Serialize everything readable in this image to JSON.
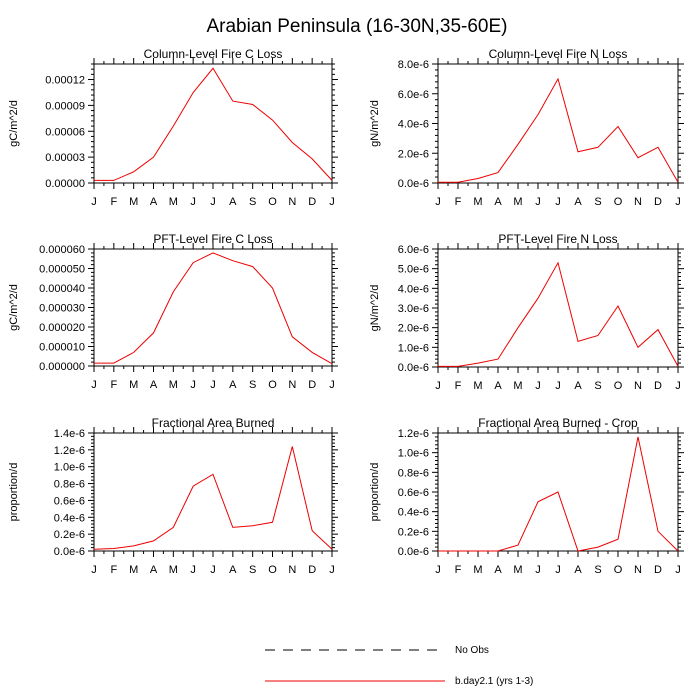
{
  "figure": {
    "title": "Arabian Peninsula (16-30N,35-60E)",
    "legend": [
      {
        "label": "No Obs",
        "style": "dashed",
        "color": "#000000"
      },
      {
        "label": "b.day2.1 (yrs 1-3)",
        "style": "solid",
        "color": "#ee0000"
      }
    ]
  },
  "chart_data": [
    {
      "type": "line",
      "title": "Column-Level Fire C Loss",
      "xlabel": "",
      "ylabel": "gC/m^2/d",
      "categories": [
        "J",
        "F",
        "M",
        "A",
        "M",
        "J",
        "J",
        "A",
        "S",
        "O",
        "N",
        "D",
        "J"
      ],
      "ylim": [
        0,
        0.000138
      ],
      "yticks": [
        0,
        3e-05,
        6e-05,
        9e-05,
        0.00012
      ],
      "ytick_labels": [
        "0.00000",
        "0.00003",
        "0.00006",
        "0.00009",
        "0.00012"
      ],
      "series": [
        {
          "name": "b.day2.1 (yrs 1-3)",
          "color": "#ee0000",
          "values": [
            3e-06,
            3e-06,
            1.3e-05,
            3e-05,
            6.6e-05,
            0.000105,
            0.000133,
            9.5e-05,
            9.1e-05,
            7.3e-05,
            4.7e-05,
            2.8e-05,
            3e-06
          ]
        }
      ]
    },
    {
      "type": "line",
      "title": "Column-Level Fire N Loss",
      "xlabel": "",
      "ylabel": "gN/m^2/d",
      "categories": [
        "J",
        "F",
        "M",
        "A",
        "M",
        "J",
        "J",
        "A",
        "S",
        "O",
        "N",
        "D",
        "J"
      ],
      "ylim": [
        0,
        8e-06
      ],
      "yticks": [
        0,
        2e-06,
        4e-06,
        6e-06,
        8e-06
      ],
      "ytick_labels": [
        "0.0e-6",
        "2.0e-6",
        "4.0e-6",
        "6.0e-6",
        "8.0e-6"
      ],
      "series": [
        {
          "name": "b.day2.1 (yrs 1-3)",
          "color": "#ee0000",
          "values": [
            5e-08,
            5e-08,
            3e-07,
            7e-07,
            2.6e-06,
            4.6e-06,
            7e-06,
            2.1e-06,
            2.4e-06,
            3.8e-06,
            1.7e-06,
            2.4e-06,
            5e-08
          ]
        }
      ]
    },
    {
      "type": "line",
      "title": "PFT-Level Fire C Loss",
      "xlabel": "",
      "ylabel": "gC/m^2/d",
      "categories": [
        "J",
        "F",
        "M",
        "A",
        "M",
        "J",
        "J",
        "A",
        "S",
        "O",
        "N",
        "D",
        "J"
      ],
      "ylim": [
        0,
        6e-05
      ],
      "yticks": [
        0,
        1e-05,
        2e-05,
        3e-05,
        4e-05,
        5e-05,
        6e-05
      ],
      "ytick_labels": [
        "0.000000",
        "0.000010",
        "0.000020",
        "0.000030",
        "0.000040",
        "0.000050",
        "0.000060"
      ],
      "series": [
        {
          "name": "b.day2.1 (yrs 1-3)",
          "color": "#ee0000",
          "values": [
            1.5e-06,
            1.5e-06,
            7e-06,
            1.7e-05,
            3.8e-05,
            5.3e-05,
            5.8e-05,
            5.4e-05,
            5.1e-05,
            4e-05,
            1.5e-05,
            7e-06,
            1.2e-06
          ]
        }
      ]
    },
    {
      "type": "line",
      "title": "PFT-Level Fire N Loss",
      "xlabel": "",
      "ylabel": "gN/m^2/d",
      "categories": [
        "J",
        "F",
        "M",
        "A",
        "M",
        "J",
        "J",
        "A",
        "S",
        "O",
        "N",
        "D",
        "J"
      ],
      "ylim": [
        0,
        6e-06
      ],
      "yticks": [
        0,
        1e-06,
        2e-06,
        3e-06,
        4e-06,
        5e-06,
        6e-06
      ],
      "ytick_labels": [
        "0.0e-6",
        "1.0e-6",
        "2.0e-6",
        "3.0e-6",
        "4.0e-6",
        "5.0e-6",
        "6.0e-6"
      ],
      "series": [
        {
          "name": "b.day2.1 (yrs 1-3)",
          "color": "#ee0000",
          "values": [
            3e-08,
            3e-08,
            2e-07,
            4e-07,
            2e-06,
            3.5e-06,
            5.3e-06,
            1.3e-06,
            1.6e-06,
            3.1e-06,
            1e-06,
            1.9e-06,
            3e-08
          ]
        }
      ]
    },
    {
      "type": "line",
      "title": "Fractional Area Burned",
      "xlabel": "",
      "ylabel": "proportion/d",
      "categories": [
        "J",
        "F",
        "M",
        "A",
        "M",
        "J",
        "J",
        "A",
        "S",
        "O",
        "N",
        "D",
        "J"
      ],
      "ylim": [
        0,
        1.4e-06
      ],
      "yticks": [
        0,
        2e-07,
        4e-07,
        6e-07,
        8e-07,
        1e-06,
        1.2e-06,
        1.4e-06
      ],
      "ytick_labels": [
        "0.0e-6",
        "0.2e-6",
        "0.4e-6",
        "0.6e-6",
        "0.8e-6",
        "1.0e-6",
        "1.2e-6",
        "1.4e-6"
      ],
      "series": [
        {
          "name": "b.day2.1 (yrs 1-3)",
          "color": "#ee0000",
          "values": [
            2e-08,
            3e-08,
            6e-08,
            1.2e-07,
            2.8e-07,
            7.7e-07,
            9.1e-07,
            2.8e-07,
            3e-07,
            3.4e-07,
            1.24e-06,
            2.4e-07,
            2e-08
          ]
        }
      ]
    },
    {
      "type": "line",
      "title": "Fractional Area Burned - Crop",
      "xlabel": "",
      "ylabel": "proportion/d",
      "categories": [
        "J",
        "F",
        "M",
        "A",
        "M",
        "J",
        "J",
        "A",
        "S",
        "O",
        "N",
        "D",
        "J"
      ],
      "ylim": [
        0,
        1.2e-06
      ],
      "yticks": [
        0,
        2e-07,
        4e-07,
        6e-07,
        8e-07,
        1e-06,
        1.2e-06
      ],
      "ytick_labels": [
        "0.0e-6",
        "0.2e-6",
        "0.4e-6",
        "0.6e-6",
        "0.8e-6",
        "1.0e-6",
        "1.2e-6"
      ],
      "series": [
        {
          "name": "b.day2.1 (yrs 1-3)",
          "color": "#ee0000",
          "values": [
            0,
            0,
            0,
            0,
            6e-08,
            5e-07,
            6e-07,
            0,
            4e-08,
            1.2e-07,
            1.16e-06,
            2e-07,
            0
          ]
        }
      ]
    }
  ]
}
